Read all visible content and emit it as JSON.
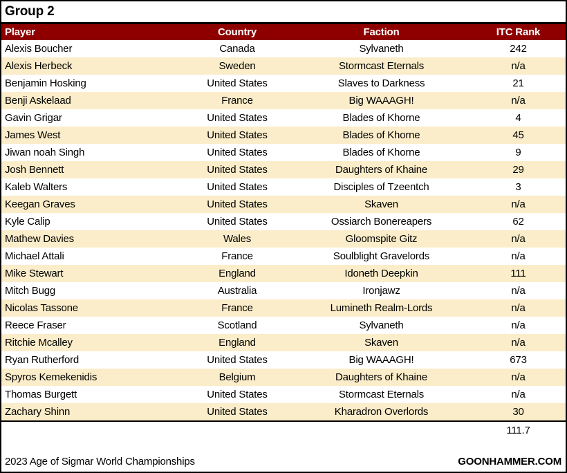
{
  "title": "Group 2",
  "colors": {
    "header_bg": "#8E0000",
    "header_text": "#FFFFFF",
    "row_alt_bg": "#FBEDC9",
    "border": "#000000"
  },
  "table": {
    "columns": [
      "Player",
      "Country",
      "Faction",
      "ITC Rank"
    ],
    "rows": [
      {
        "player": "Alexis Boucher",
        "country": "Canada",
        "faction": "Sylvaneth",
        "itc_rank": "242"
      },
      {
        "player": "Alexis Herbeck",
        "country": "Sweden",
        "faction": "Stormcast Eternals",
        "itc_rank": "n/a"
      },
      {
        "player": "Benjamin Hosking",
        "country": "United States",
        "faction": "Slaves to Darkness",
        "itc_rank": "21"
      },
      {
        "player": "Benji Askelaad",
        "country": "France",
        "faction": "Big WAAAGH!",
        "itc_rank": "n/a"
      },
      {
        "player": "Gavin Grigar",
        "country": "United States",
        "faction": "Blades of Khorne",
        "itc_rank": "4"
      },
      {
        "player": "James West",
        "country": "United States",
        "faction": "Blades of Khorne",
        "itc_rank": "45"
      },
      {
        "player": "Jiwan noah Singh",
        "country": "United States",
        "faction": "Blades of Khorne",
        "itc_rank": "9"
      },
      {
        "player": "Josh Bennett",
        "country": "United States",
        "faction": "Daughters of Khaine",
        "itc_rank": "29"
      },
      {
        "player": "Kaleb Walters",
        "country": "United States",
        "faction": "Disciples of Tzeentch",
        "itc_rank": "3"
      },
      {
        "player": "Keegan Graves",
        "country": "United States",
        "faction": "Skaven",
        "itc_rank": "n/a"
      },
      {
        "player": "Kyle Calip",
        "country": "United States",
        "faction": "Ossiarch Bonereapers",
        "itc_rank": "62"
      },
      {
        "player": "Mathew Davies",
        "country": "Wales",
        "faction": "Gloomspite Gitz",
        "itc_rank": "n/a"
      },
      {
        "player": "Michael Attali",
        "country": "France",
        "faction": "Soulblight Gravelords",
        "itc_rank": "n/a"
      },
      {
        "player": "Mike Stewart",
        "country": "England",
        "faction": "Idoneth Deepkin",
        "itc_rank": "111"
      },
      {
        "player": "Mitch Bugg",
        "country": "Australia",
        "faction": "Ironjawz",
        "itc_rank": "n/a"
      },
      {
        "player": "Nicolas Tassone",
        "country": "France",
        "faction": "Lumineth Realm-Lords",
        "itc_rank": "n/a"
      },
      {
        "player": "Reece Fraser",
        "country": "Scotland",
        "faction": "Sylvaneth",
        "itc_rank": "n/a"
      },
      {
        "player": "Ritchie Mcalley",
        "country": "England",
        "faction": "Skaven",
        "itc_rank": "n/a"
      },
      {
        "player": "Ryan Rutherford",
        "country": "United States",
        "faction": "Big WAAAGH!",
        "itc_rank": "673"
      },
      {
        "player": "Spyros Kemekenidis",
        "country": "Belgium",
        "faction": "Daughters of Khaine",
        "itc_rank": "n/a"
      },
      {
        "player": "Thomas Burgett",
        "country": "United States",
        "faction": "Stormcast Eternals",
        "itc_rank": "n/a"
      },
      {
        "player": "Zachary Shinn",
        "country": "United States",
        "faction": "Kharadron Overlords",
        "itc_rank": "30"
      }
    ],
    "summary_value": "111.7"
  },
  "footer": {
    "left": "2023 Age of Sigmar World Championships",
    "right": "GOONHAMMER.COM"
  },
  "chart_data": {
    "type": "table",
    "title": "Group 2",
    "columns": [
      "Player",
      "Country",
      "Faction",
      "ITC Rank"
    ],
    "rows": [
      [
        "Alexis Boucher",
        "Canada",
        "Sylvaneth",
        "242"
      ],
      [
        "Alexis Herbeck",
        "Sweden",
        "Stormcast Eternals",
        "n/a"
      ],
      [
        "Benjamin Hosking",
        "United States",
        "Slaves to Darkness",
        "21"
      ],
      [
        "Benji Askelaad",
        "France",
        "Big WAAAGH!",
        "n/a"
      ],
      [
        "Gavin Grigar",
        "United States",
        "Blades of Khorne",
        "4"
      ],
      [
        "James West",
        "United States",
        "Blades of Khorne",
        "45"
      ],
      [
        "Jiwan noah Singh",
        "United States",
        "Blades of Khorne",
        "9"
      ],
      [
        "Josh Bennett",
        "United States",
        "Daughters of Khaine",
        "29"
      ],
      [
        "Kaleb Walters",
        "United States",
        "Disciples of Tzeentch",
        "3"
      ],
      [
        "Keegan Graves",
        "United States",
        "Skaven",
        "n/a"
      ],
      [
        "Kyle Calip",
        "United States",
        "Ossiarch Bonereapers",
        "62"
      ],
      [
        "Mathew Davies",
        "Wales",
        "Gloomspite Gitz",
        "n/a"
      ],
      [
        "Michael Attali",
        "France",
        "Soulblight Gravelords",
        "n/a"
      ],
      [
        "Mike Stewart",
        "England",
        "Idoneth Deepkin",
        "111"
      ],
      [
        "Mitch Bugg",
        "Australia",
        "Ironjawz",
        "n/a"
      ],
      [
        "Nicolas Tassone",
        "France",
        "Lumineth Realm-Lords",
        "n/a"
      ],
      [
        "Reece Fraser",
        "Scotland",
        "Sylvaneth",
        "n/a"
      ],
      [
        "Ritchie Mcalley",
        "England",
        "Skaven",
        "n/a"
      ],
      [
        "Ryan Rutherford",
        "United States",
        "Big WAAAGH!",
        "673"
      ],
      [
        "Spyros Kemekenidis",
        "Belgium",
        "Daughters of Khaine",
        "n/a"
      ],
      [
        "Thomas Burgett",
        "United States",
        "Stormcast Eternals",
        "n/a"
      ],
      [
        "Zachary Shinn",
        "United States",
        "Kharadron Overlords",
        "30"
      ]
    ],
    "summary_value": "111.7"
  }
}
